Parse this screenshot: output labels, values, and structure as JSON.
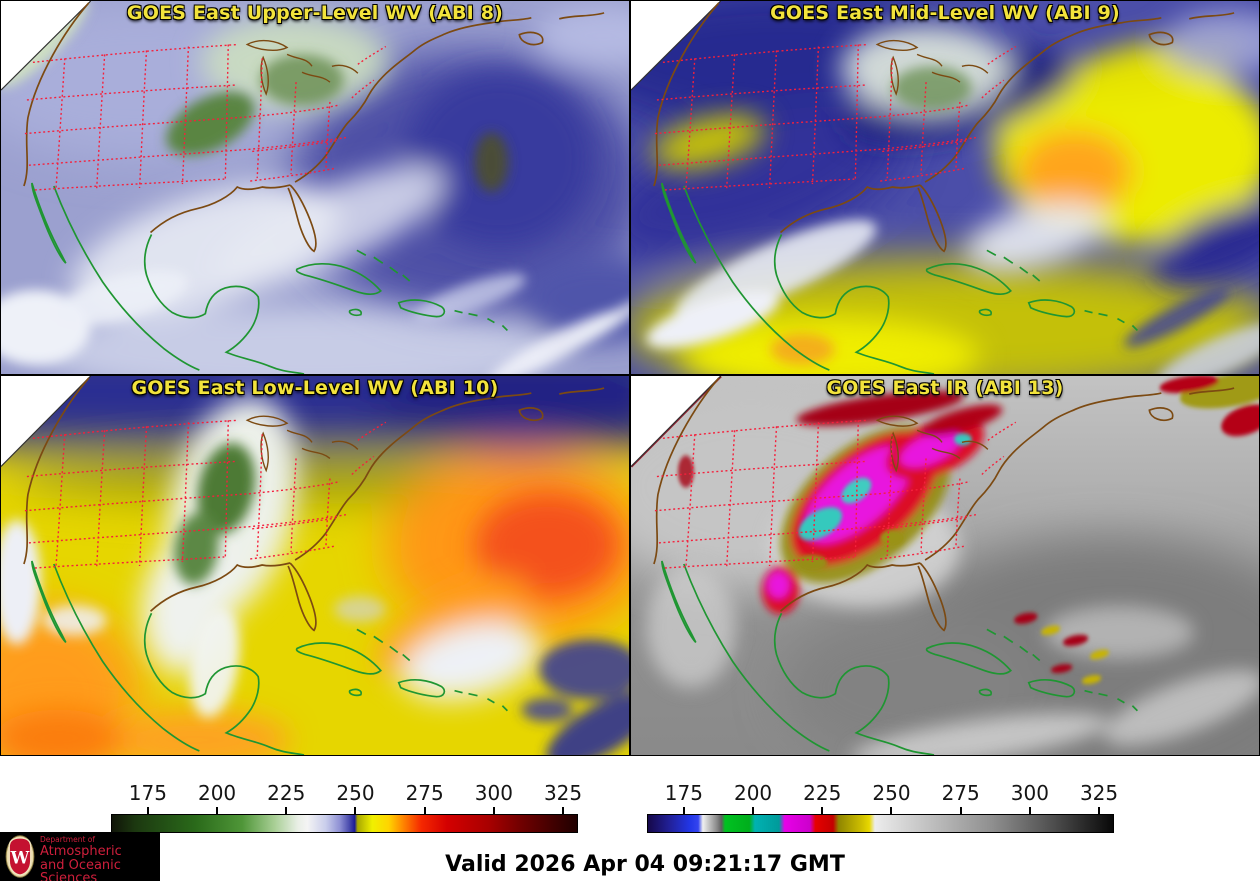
{
  "panels": [
    {
      "title": "GOES East Upper-Level WV (ABI 8)"
    },
    {
      "title": "GOES East Mid-Level WV (ABI 9)"
    },
    {
      "title": "GOES East Low-Level WV (ABI 10)"
    },
    {
      "title": "GOES East IR (ABI 13)"
    }
  ],
  "title_color": "#f2e33c",
  "colorbars": [
    {
      "name": "water-vapor-colorbar",
      "ticks": [
        "175",
        "200",
        "225",
        "250",
        "275",
        "300",
        "325"
      ],
      "stops": [
        [
          "#101408",
          0
        ],
        [
          "#1c3810",
          5
        ],
        [
          "#2a6a1a",
          18
        ],
        [
          "#4f9638",
          28
        ],
        [
          "#a9cf96",
          35
        ],
        [
          "#e9efe6",
          40
        ],
        [
          "#f4f4f4",
          42
        ],
        [
          "#c9cdeb",
          46
        ],
        [
          "#8e90d4",
          49
        ],
        [
          "#4a4cae",
          51
        ],
        [
          "#1c1c96",
          52.2
        ],
        [
          "#a8a800",
          52.8
        ],
        [
          "#f0f000",
          56
        ],
        [
          "#ffd400",
          59.5
        ],
        [
          "#ff8800",
          62.5
        ],
        [
          "#f52800",
          66.5
        ],
        [
          "#d40000",
          72
        ],
        [
          "#a80000",
          81
        ],
        [
          "#700000",
          88
        ],
        [
          "#400000",
          95
        ],
        [
          "#200000",
          100
        ]
      ]
    },
    {
      "name": "ir-colorbar",
      "ticks": [
        "175",
        "200",
        "225",
        "250",
        "275",
        "300",
        "325"
      ],
      "stops": [
        [
          "#16084a",
          0
        ],
        [
          "#22229e",
          5
        ],
        [
          "#2236e6",
          9
        ],
        [
          "#3344f0",
          10.8
        ],
        [
          "#f0f0f0",
          11.8
        ],
        [
          "#8a8a8a",
          14.8
        ],
        [
          "#5f5f5f",
          15.8
        ],
        [
          "#00c221",
          16.6
        ],
        [
          "#00ae1c",
          21.8
        ],
        [
          "#00b2b2",
          23
        ],
        [
          "#009a9a",
          28.2
        ],
        [
          "#e800e8",
          29.4
        ],
        [
          "#cc00cc",
          34.8
        ],
        [
          "#e60000",
          36
        ],
        [
          "#c40000",
          39.8
        ],
        [
          "#8f8500",
          41
        ],
        [
          "#cfc000",
          46
        ],
        [
          "#e8d800",
          47.6
        ],
        [
          "#ececec",
          48.8
        ],
        [
          "#c2c2c2",
          60
        ],
        [
          "#8f8f8f",
          74
        ],
        [
          "#4f4f4f",
          87
        ],
        [
          "#080808",
          100
        ]
      ]
    }
  ],
  "footer": {
    "valid": "Valid 2026 Apr 04 09:21:17 GMT"
  },
  "logo": {
    "dept": "Department of",
    "line1": "Atmospheric",
    "line2": "and Oceanic Sciences",
    "bg": "#000000",
    "text_color": "#cf1f3c",
    "crest_letter": "W"
  }
}
